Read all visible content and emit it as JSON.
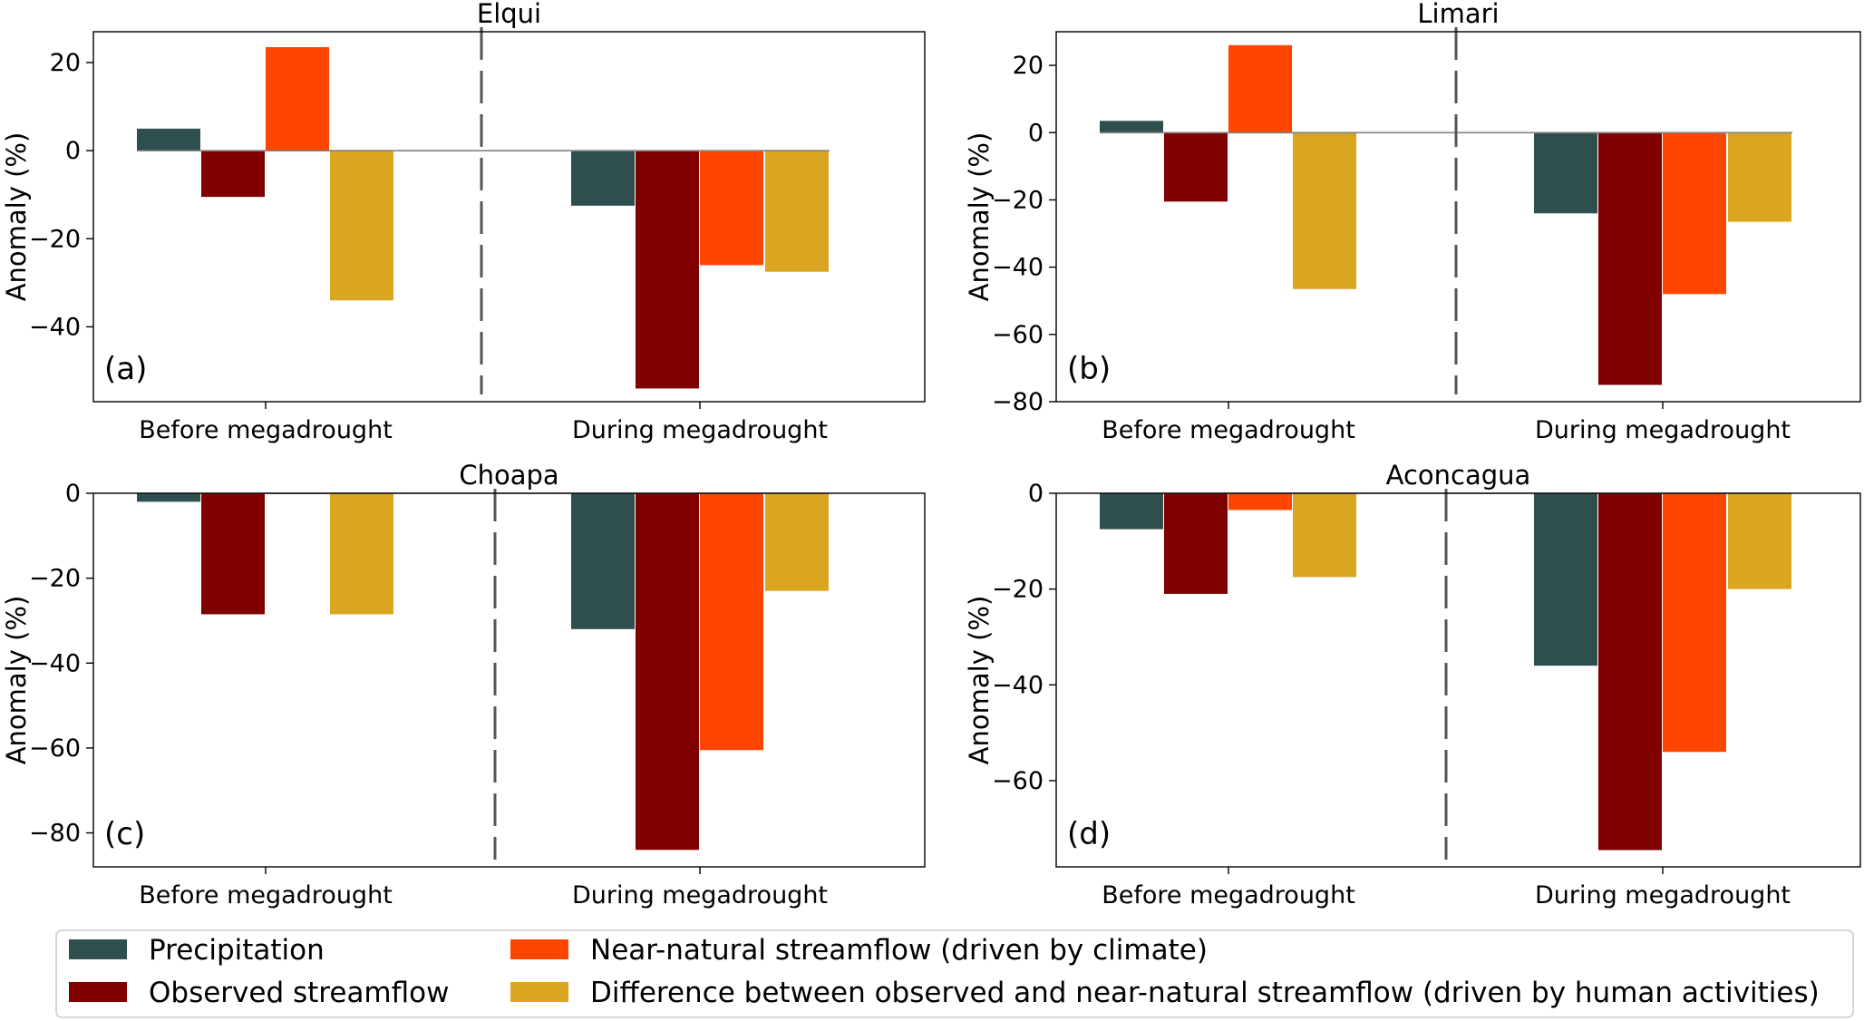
{
  "categories": [
    "Before megadrought",
    "During megadrought"
  ],
  "colors": {
    "Precipitation": "#2f4f4f",
    "Observed streamflow": "#800000",
    "Near-natural streamflow (driven by climate)": "#ff4500",
    "Difference between observed and near-natural streamflow (driven by human activities)": "#daa520"
  },
  "legend": {
    "items": [
      "Precipitation",
      "Observed streamflow",
      "Near-natural streamflow (driven by climate)",
      "Difference between observed and near-natural streamflow (driven by human activities)"
    ]
  },
  "chart_data": [
    {
      "type": "bar",
      "title": "Elqui",
      "panel_label": "(a)",
      "ylabel": "Anomaly (%)",
      "ylim": [
        -57,
        27
      ],
      "yticks": [
        20,
        0,
        -20,
        -40
      ],
      "categories": [
        "Before megadrought",
        "During megadrought"
      ],
      "series": [
        {
          "name": "Precipitation",
          "values": [
            5,
            -12.5
          ]
        },
        {
          "name": "Observed streamflow",
          "values": [
            -10.5,
            -54
          ]
        },
        {
          "name": "Near-natural streamflow (driven by climate)",
          "values": [
            23.5,
            -26
          ]
        },
        {
          "name": "Difference between observed and near-natural streamflow (driven by human activities)",
          "values": [
            -34,
            -27.5
          ]
        }
      ]
    },
    {
      "type": "bar",
      "title": "Limari",
      "panel_label": "(b)",
      "ylabel": "Anomaly (%)",
      "ylim": [
        -80,
        30
      ],
      "yticks": [
        20,
        0,
        -20,
        -40,
        -60,
        -80
      ],
      "categories": [
        "Before megadrought",
        "During megadrought"
      ],
      "series": [
        {
          "name": "Precipitation",
          "values": [
            3.5,
            -24
          ]
        },
        {
          "name": "Observed streamflow",
          "values": [
            -20.5,
            -75
          ]
        },
        {
          "name": "Near-natural streamflow (driven by climate)",
          "values": [
            26,
            -48
          ]
        },
        {
          "name": "Difference between observed and near-natural streamflow (driven by human activities)",
          "values": [
            -46.5,
            -26.5
          ]
        }
      ]
    },
    {
      "type": "bar",
      "title": "Choapa",
      "panel_label": "(c)",
      "ylabel": "Anomaly (%)",
      "ylim": [
        -88,
        0
      ],
      "yticks": [
        0,
        -20,
        -40,
        -60,
        -80
      ],
      "categories": [
        "Before megadrought",
        "During megadrought"
      ],
      "series": [
        {
          "name": "Precipitation",
          "values": [
            -2,
            -32
          ]
        },
        {
          "name": "Observed streamflow",
          "values": [
            -28.5,
            -84
          ]
        },
        {
          "name": "Near-natural streamflow (driven by climate)",
          "values": [
            0,
            -60.5
          ]
        },
        {
          "name": "Difference between observed and near-natural streamflow (driven by human activities)",
          "values": [
            -28.5,
            -23
          ]
        }
      ]
    },
    {
      "type": "bar",
      "title": "Aconcagua",
      "panel_label": "(d)",
      "ylabel": "Anomaly (%)",
      "ylim": [
        -78,
        0
      ],
      "yticks": [
        0,
        -20,
        -40,
        -60
      ],
      "categories": [
        "Before megadrought",
        "During megadrought"
      ],
      "series": [
        {
          "name": "Precipitation",
          "values": [
            -7.5,
            -36
          ]
        },
        {
          "name": "Observed streamflow",
          "values": [
            -21,
            -74.5
          ]
        },
        {
          "name": "Near-natural streamflow (driven by climate)",
          "values": [
            -3.5,
            -54
          ]
        },
        {
          "name": "Difference between observed and near-natural streamflow (driven by human activities)",
          "values": [
            -17.5,
            -20
          ]
        }
      ]
    }
  ]
}
